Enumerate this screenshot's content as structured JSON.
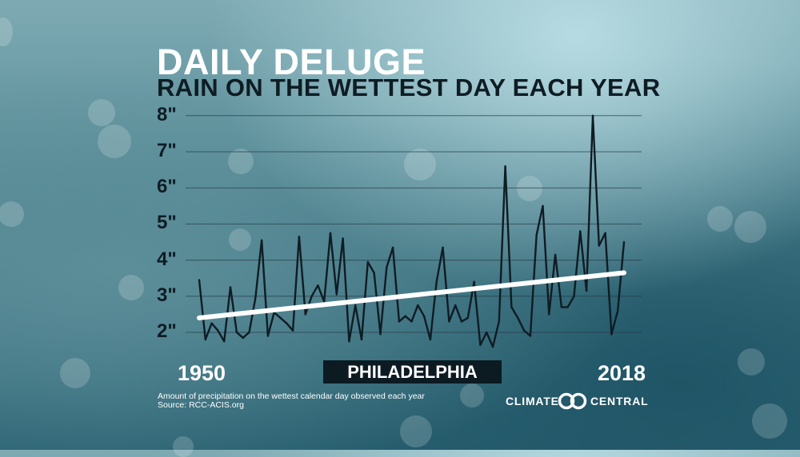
{
  "title": "DAILY DELUGE",
  "subtitle": "RAIN ON THE WETTEST DAY EACH YEAR",
  "location_label": "PHILADELPHIA",
  "start_year": "1950",
  "end_year": "2018",
  "footnote": "Amount of precipitation on the wettest calendar day observed each year",
  "source": "Source: RCC-ACIS.org",
  "brand": {
    "left": "CLIMATE",
    "right": "CENTRAL"
  },
  "icons": {
    "logo": "climate-central-rings-icon"
  },
  "colors": {
    "line": "#0f1c24",
    "trend": "#ffffff",
    "grid": "#243a44",
    "label_box": "#0c1a22"
  },
  "chart_data": {
    "type": "line",
    "title": "DAILY DELUGE",
    "subtitle": "RAIN ON THE WETTEST DAY EACH YEAR",
    "ylim": [
      1.5,
      8
    ],
    "yticks": [
      2,
      3,
      4,
      5,
      6,
      7,
      8
    ],
    "ytick_labels": [
      "2\"",
      "3\"",
      "4\"",
      "5\"",
      "6\"",
      "7\"",
      "8\""
    ],
    "xlim": [
      1950,
      2018
    ],
    "x": [
      1950,
      1951,
      1952,
      1953,
      1954,
      1955,
      1956,
      1957,
      1958,
      1959,
      1960,
      1961,
      1962,
      1963,
      1964,
      1965,
      1966,
      1967,
      1968,
      1969,
      1970,
      1971,
      1972,
      1973,
      1974,
      1975,
      1976,
      1977,
      1978,
      1979,
      1980,
      1981,
      1982,
      1983,
      1984,
      1985,
      1986,
      1987,
      1988,
      1989,
      1990,
      1991,
      1992,
      1993,
      1994,
      1995,
      1996,
      1997,
      1998,
      1999,
      2000,
      2001,
      2002,
      2003,
      2004,
      2005,
      2006,
      2007,
      2008,
      2009,
      2010,
      2011,
      2012,
      2013,
      2014,
      2015,
      2016,
      2017,
      2018
    ],
    "series": [
      {
        "values": [
          3.45,
          1.8,
          2.25,
          2.05,
          1.75,
          3.25,
          2.0,
          1.85,
          2.0,
          2.95,
          4.55,
          1.9,
          2.55,
          2.4,
          2.25,
          2.05,
          4.65,
          2.5,
          3.0,
          3.3,
          2.85,
          4.75,
          3.05,
          4.6,
          1.75,
          2.75,
          1.8,
          3.95,
          3.65,
          1.95,
          3.8,
          4.35,
          2.3,
          2.45,
          2.3,
          2.75,
          2.45,
          1.8,
          3.4,
          4.35,
          2.3,
          2.75,
          2.3,
          2.4,
          3.4,
          1.65,
          2.0,
          1.6,
          2.3,
          6.6,
          2.7,
          2.4,
          2.05,
          1.9,
          4.7,
          5.5,
          2.5,
          4.15,
          2.7,
          2.7,
          3.0,
          4.8,
          3.15,
          8.0,
          4.4,
          4.75,
          1.95,
          2.6,
          4.5
        ]
      }
    ],
    "trend": {
      "from": [
        1950,
        2.4
      ],
      "to": [
        2018,
        3.65
      ]
    },
    "grid": true,
    "legend": "none"
  }
}
